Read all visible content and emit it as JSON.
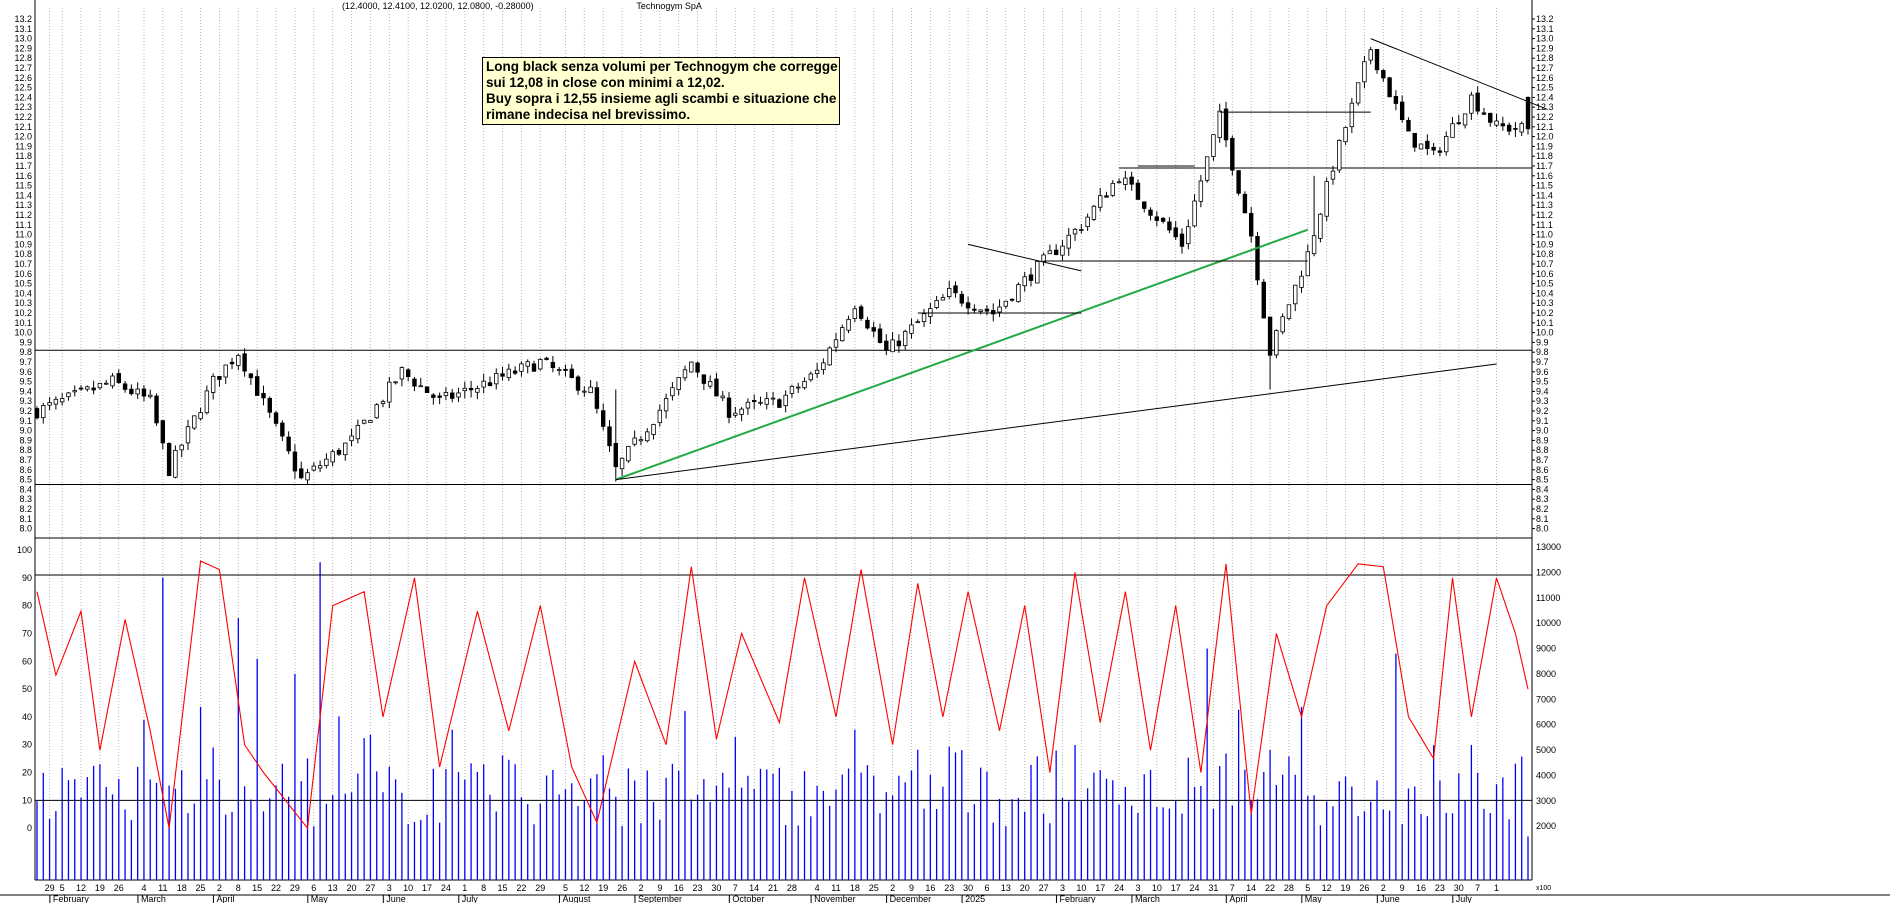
{
  "header": {
    "title": "Technogym SpA",
    "ohlc_text": "(12.4000, 12.4100, 12.0200, 12.0800, -0.28000)"
  },
  "annotation": {
    "lines": [
      "Long black senza volumi per Technogym che corregge",
      "sui 12,08 in close con minimi a 12,02.",
      "Buy sopra i 12,55 insieme agli scambi e situazione che",
      "rimane indecisa nel brevissimo."
    ]
  },
  "colors": {
    "candle_up": "#ffffff",
    "candle_down": "#000000",
    "trend_green": "#22aa44",
    "oscillator_line": "#ff0000",
    "volume_bars": "#0000ff",
    "grid": "#b4b4b4"
  },
  "chart_data": [
    {
      "type": "candlestick",
      "title": "Technogym SpA",
      "ylim": [
        8.0,
        13.2
      ],
      "y_ticks": [
        "13.2",
        "13.1",
        "13.0",
        "12.9",
        "12.8",
        "12.7",
        "12.6",
        "12.5",
        "12.4",
        "12.3",
        "12.2",
        "12.1",
        "12.0",
        "11.9",
        "11.8",
        "11.7",
        "11.6",
        "11.5",
        "11.4",
        "11.3",
        "11.2",
        "11.1",
        "11.0",
        "10.9",
        "10.8",
        "10.7",
        "10.6",
        "10.5",
        "10.4",
        "10.3",
        "10.2",
        "10.1",
        "10.0",
        "9.9",
        "9.8",
        "9.7",
        "9.6",
        "9.5",
        "9.4",
        "9.3",
        "9.2",
        "9.1",
        "9.0",
        "8.9",
        "8.8",
        "8.7",
        "8.6",
        "8.5",
        "8.4",
        "8.3",
        "8.2",
        "8.1",
        "8.0"
      ],
      "last_bar": {
        "open": 12.4,
        "high": 12.41,
        "low": 12.02,
        "close": 12.08,
        "change": -0.28
      },
      "price_anchors": [
        {
          "x": 0,
          "close": 9.2
        },
        {
          "x": 12,
          "close": 9.5
        },
        {
          "x": 18,
          "close": 9.3
        },
        {
          "x": 21,
          "close": 8.6
        },
        {
          "x": 28,
          "close": 9.5
        },
        {
          "x": 32,
          "close": 9.8
        },
        {
          "x": 42,
          "close": 8.5
        },
        {
          "x": 50,
          "close": 8.9
        },
        {
          "x": 58,
          "close": 9.6
        },
        {
          "x": 64,
          "close": 9.3
        },
        {
          "x": 72,
          "close": 9.5
        },
        {
          "x": 80,
          "close": 9.7
        },
        {
          "x": 88,
          "close": 9.4
        },
        {
          "x": 92,
          "close": 8.6
        },
        {
          "x": 100,
          "close": 9.3
        },
        {
          "x": 104,
          "close": 9.7
        },
        {
          "x": 110,
          "close": 9.2
        },
        {
          "x": 118,
          "close": 9.3
        },
        {
          "x": 124,
          "close": 9.6
        },
        {
          "x": 130,
          "close": 10.3
        },
        {
          "x": 135,
          "close": 9.8
        },
        {
          "x": 145,
          "close": 10.4
        },
        {
          "x": 152,
          "close": 10.2
        },
        {
          "x": 158,
          "close": 10.6
        },
        {
          "x": 166,
          "close": 11.1
        },
        {
          "x": 172,
          "close": 11.6
        },
        {
          "x": 182,
          "close": 10.9
        },
        {
          "x": 188,
          "close": 12.2
        },
        {
          "x": 193,
          "close": 11.0
        },
        {
          "x": 196,
          "close": 9.8
        },
        {
          "x": 202,
          "close": 10.8
        },
        {
          "x": 206,
          "close": 11.7
        },
        {
          "x": 212,
          "close": 12.9
        },
        {
          "x": 218,
          "close": 12.0
        },
        {
          "x": 222,
          "close": 11.8
        },
        {
          "x": 228,
          "close": 12.4
        },
        {
          "x": 232,
          "close": 12.1
        },
        {
          "x": 236,
          "close": 12.08
        }
      ],
      "reference_lines": [
        9.82,
        8.45,
        11.68
      ],
      "trendlines": [
        {
          "from": {
            "x": 92,
            "price": 8.5
          },
          "to": {
            "x": 202,
            "price": 11.05
          },
          "color": "#22aa44"
        },
        {
          "from": {
            "x": 92,
            "price": 8.5
          },
          "to": {
            "x": 232,
            "price": 9.68
          }
        },
        {
          "from": {
            "x": 148,
            "price": 10.9
          },
          "to": {
            "x": 166,
            "price": 10.63
          }
        },
        {
          "from": {
            "x": 212,
            "price": 13.0
          },
          "to": {
            "x": 240,
            "price": 12.28
          }
        },
        {
          "from": {
            "x": 140,
            "price": 10.2
          },
          "to": {
            "x": 166,
            "price": 10.2
          }
        },
        {
          "from": {
            "x": 160,
            "price": 10.73
          },
          "to": {
            "x": 202,
            "price": 10.73
          }
        },
        {
          "from": {
            "x": 175,
            "price": 11.7
          },
          "to": {
            "x": 184,
            "price": 11.7
          }
        },
        {
          "from": {
            "x": 188,
            "price": 12.25
          },
          "to": {
            "x": 212,
            "price": 12.25
          }
        }
      ]
    },
    {
      "type": "line",
      "series": [
        {
          "name": "",
          "color": "#ff0000"
        }
      ],
      "ylim": [
        -10,
        100
      ],
      "y_ticks": [
        "100",
        "90",
        "80",
        "70",
        "60",
        "50",
        "40",
        "30",
        "20",
        "10",
        "0"
      ],
      "reference_lines": [
        91,
        10
      ],
      "anchors": [
        {
          "x": 0,
          "y": 85
        },
        {
          "x": 3,
          "y": 55
        },
        {
          "x": 7,
          "y": 78
        },
        {
          "x": 10,
          "y": 28
        },
        {
          "x": 14,
          "y": 75
        },
        {
          "x": 18,
          "y": 35
        },
        {
          "x": 21,
          "y": 0
        },
        {
          "x": 26,
          "y": 96
        },
        {
          "x": 29,
          "y": 93
        },
        {
          "x": 33,
          "y": 30
        },
        {
          "x": 36,
          "y": 20
        },
        {
          "x": 43,
          "y": 0
        },
        {
          "x": 47,
          "y": 80
        },
        {
          "x": 52,
          "y": 85
        },
        {
          "x": 55,
          "y": 40
        },
        {
          "x": 60,
          "y": 90
        },
        {
          "x": 64,
          "y": 22
        },
        {
          "x": 70,
          "y": 78
        },
        {
          "x": 75,
          "y": 35
        },
        {
          "x": 80,
          "y": 80
        },
        {
          "x": 85,
          "y": 22
        },
        {
          "x": 89,
          "y": 2
        },
        {
          "x": 95,
          "y": 60
        },
        {
          "x": 100,
          "y": 30
        },
        {
          "x": 104,
          "y": 94
        },
        {
          "x": 108,
          "y": 32
        },
        {
          "x": 112,
          "y": 70
        },
        {
          "x": 118,
          "y": 38
        },
        {
          "x": 122,
          "y": 90
        },
        {
          "x": 127,
          "y": 40
        },
        {
          "x": 131,
          "y": 93
        },
        {
          "x": 136,
          "y": 30
        },
        {
          "x": 140,
          "y": 88
        },
        {
          "x": 144,
          "y": 40
        },
        {
          "x": 148,
          "y": 85
        },
        {
          "x": 153,
          "y": 35
        },
        {
          "x": 157,
          "y": 80
        },
        {
          "x": 161,
          "y": 20
        },
        {
          "x": 165,
          "y": 92
        },
        {
          "x": 169,
          "y": 38
        },
        {
          "x": 173,
          "y": 85
        },
        {
          "x": 177,
          "y": 28
        },
        {
          "x": 181,
          "y": 80
        },
        {
          "x": 185,
          "y": 20
        },
        {
          "x": 189,
          "y": 95
        },
        {
          "x": 193,
          "y": 5
        },
        {
          "x": 197,
          "y": 70
        },
        {
          "x": 201,
          "y": 40
        },
        {
          "x": 205,
          "y": 80
        },
        {
          "x": 210,
          "y": 95
        },
        {
          "x": 214,
          "y": 94
        },
        {
          "x": 218,
          "y": 40
        },
        {
          "x": 222,
          "y": 25
        },
        {
          "x": 225,
          "y": 90
        },
        {
          "x": 228,
          "y": 40
        },
        {
          "x": 232,
          "y": 90
        },
        {
          "x": 235,
          "y": 70
        },
        {
          "x": 237,
          "y": 50
        }
      ]
    },
    {
      "type": "bar",
      "name": "volume",
      "color": "#0000ff",
      "ylim": [
        0,
        13000
      ],
      "y_ticks": [
        "13000",
        "12000",
        "11000",
        "10000",
        "9000",
        "8000",
        "7000",
        "6000",
        "5000",
        "4000",
        "3000",
        "2000"
      ],
      "last_label": "x100",
      "peaks": [
        {
          "x": 20,
          "value": 11800
        },
        {
          "x": 26,
          "value": 6700
        },
        {
          "x": 28,
          "value": 5100
        },
        {
          "x": 32,
          "value": 10200
        },
        {
          "x": 35,
          "value": 8600
        },
        {
          "x": 41,
          "value": 8000
        },
        {
          "x": 45,
          "value": 12400
        },
        {
          "x": 90,
          "value": 4800
        },
        {
          "x": 118,
          "value": 4300
        },
        {
          "x": 130,
          "value": 5800
        },
        {
          "x": 147,
          "value": 5000
        },
        {
          "x": 165,
          "value": 5200
        },
        {
          "x": 186,
          "value": 9000
        },
        {
          "x": 201,
          "value": 6700
        },
        {
          "x": 216,
          "value": 8800
        },
        {
          "x": 228,
          "value": 5200
        }
      ]
    }
  ],
  "x_axis": {
    "day_ticks": [
      {
        "x": 2,
        "label": "29"
      },
      {
        "x": 4,
        "label": "5"
      },
      {
        "x": 7,
        "label": "12"
      },
      {
        "x": 10,
        "label": "19"
      },
      {
        "x": 13,
        "label": "26"
      },
      {
        "x": 17,
        "label": "4"
      },
      {
        "x": 20,
        "label": "11"
      },
      {
        "x": 23,
        "label": "18"
      },
      {
        "x": 26,
        "label": "25"
      },
      {
        "x": 29,
        "label": "2"
      },
      {
        "x": 32,
        "label": "8"
      },
      {
        "x": 35,
        "label": "15"
      },
      {
        "x": 38,
        "label": "22"
      },
      {
        "x": 41,
        "label": "29"
      },
      {
        "x": 44,
        "label": "6"
      },
      {
        "x": 47,
        "label": "13"
      },
      {
        "x": 50,
        "label": "20"
      },
      {
        "x": 53,
        "label": "27"
      },
      {
        "x": 56,
        "label": "3"
      },
      {
        "x": 59,
        "label": "10"
      },
      {
        "x": 62,
        "label": "17"
      },
      {
        "x": 65,
        "label": "24"
      },
      {
        "x": 68,
        "label": "1"
      },
      {
        "x": 71,
        "label": "8"
      },
      {
        "x": 74,
        "label": "15"
      },
      {
        "x": 77,
        "label": "22"
      },
      {
        "x": 80,
        "label": "29"
      },
      {
        "x": 84,
        "label": "5"
      },
      {
        "x": 87,
        "label": "12"
      },
      {
        "x": 90,
        "label": "19"
      },
      {
        "x": 93,
        "label": "26"
      },
      {
        "x": 96,
        "label": "2"
      },
      {
        "x": 99,
        "label": "9"
      },
      {
        "x": 102,
        "label": "16"
      },
      {
        "x": 105,
        "label": "23"
      },
      {
        "x": 108,
        "label": "30"
      },
      {
        "x": 111,
        "label": "7"
      },
      {
        "x": 114,
        "label": "14"
      },
      {
        "x": 117,
        "label": "21"
      },
      {
        "x": 120,
        "label": "28"
      },
      {
        "x": 124,
        "label": "4"
      },
      {
        "x": 127,
        "label": "11"
      },
      {
        "x": 130,
        "label": "18"
      },
      {
        "x": 133,
        "label": "25"
      },
      {
        "x": 136,
        "label": "2"
      },
      {
        "x": 139,
        "label": "9"
      },
      {
        "x": 142,
        "label": "16"
      },
      {
        "x": 145,
        "label": "23"
      },
      {
        "x": 148,
        "label": "30"
      },
      {
        "x": 151,
        "label": "6"
      },
      {
        "x": 154,
        "label": "13"
      },
      {
        "x": 157,
        "label": "20"
      },
      {
        "x": 160,
        "label": "27"
      },
      {
        "x": 163,
        "label": "3"
      },
      {
        "x": 166,
        "label": "10"
      },
      {
        "x": 169,
        "label": "17"
      },
      {
        "x": 172,
        "label": "24"
      },
      {
        "x": 175,
        "label": "3"
      },
      {
        "x": 178,
        "label": "10"
      },
      {
        "x": 181,
        "label": "17"
      },
      {
        "x": 184,
        "label": "24"
      },
      {
        "x": 187,
        "label": "31"
      },
      {
        "x": 190,
        "label": "7"
      },
      {
        "x": 193,
        "label": "14"
      },
      {
        "x": 196,
        "label": "22"
      },
      {
        "x": 199,
        "label": "28"
      },
      {
        "x": 202,
        "label": "5"
      },
      {
        "x": 205,
        "label": "12"
      },
      {
        "x": 208,
        "label": "19"
      },
      {
        "x": 211,
        "label": "26"
      },
      {
        "x": 214,
        "label": "2"
      },
      {
        "x": 217,
        "label": "9"
      },
      {
        "x": 220,
        "label": "16"
      },
      {
        "x": 223,
        "label": "23"
      },
      {
        "x": 226,
        "label": "30"
      },
      {
        "x": 229,
        "label": "7"
      },
      {
        "x": 232,
        "label": "1"
      }
    ],
    "months": [
      {
        "x": 3,
        "label": "February"
      },
      {
        "x": 17,
        "label": "March"
      },
      {
        "x": 29,
        "label": "April"
      },
      {
        "x": 44,
        "label": "May"
      },
      {
        "x": 56,
        "label": "June"
      },
      {
        "x": 68,
        "label": "July"
      },
      {
        "x": 84,
        "label": "August"
      },
      {
        "x": 96,
        "label": "September"
      },
      {
        "x": 111,
        "label": "October"
      },
      {
        "x": 124,
        "label": "November"
      },
      {
        "x": 136,
        "label": "December"
      },
      {
        "x": 148,
        "label": "2025"
      },
      {
        "x": 163,
        "label": "February"
      },
      {
        "x": 175,
        "label": "March"
      },
      {
        "x": 190,
        "label": "April"
      },
      {
        "x": 202,
        "label": "May"
      },
      {
        "x": 214,
        "label": "June"
      },
      {
        "x": 226,
        "label": "July"
      }
    ]
  }
}
